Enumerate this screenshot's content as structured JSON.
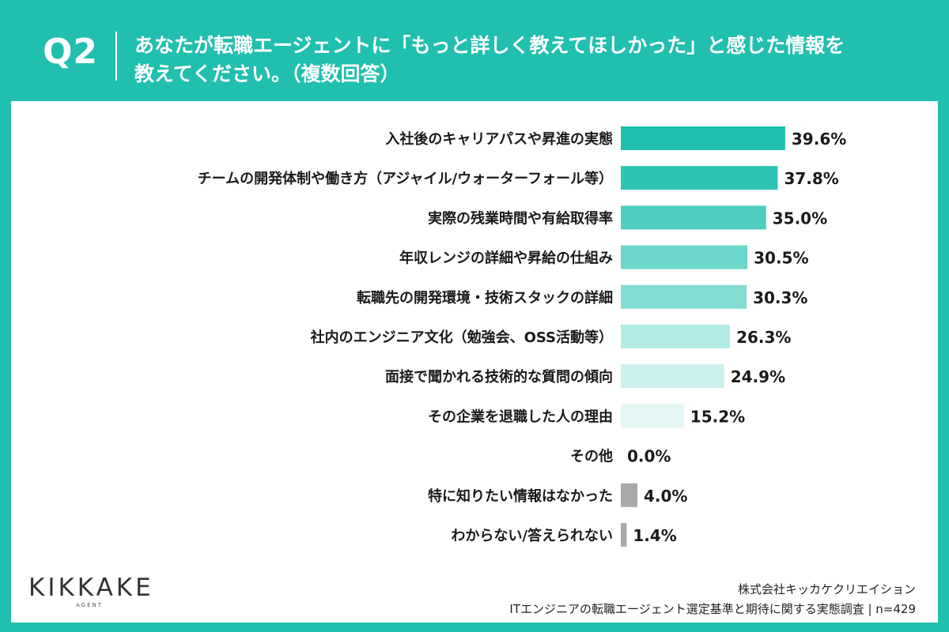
{
  "header": {
    "question_number": "Q2",
    "title_line1": "あなたが転職エージェントに「もっと詳しく教えてほしかった」と感じた情報を",
    "title_line2": "教えてください。（複数回答）"
  },
  "logo": {
    "name": "KIKKAKE",
    "sub": "AGENT"
  },
  "source": {
    "company": "株式会社キッカケクリエイション",
    "survey": "ITエンジニアの転職エージェント選定基準と期待に関する実態調査 | n=429"
  },
  "colors": {
    "background": "#21bfae",
    "bars": [
      "#21bfae",
      "#2ec3b3",
      "#4fcdbf",
      "#6ad7ca",
      "#84ddd3",
      "#b2ebe4",
      "#cbf1ec",
      "#e3f7f4",
      "#e3f7f4",
      "#a9a9a9",
      "#a9a9a9"
    ]
  },
  "chart_data": {
    "type": "bar",
    "orientation": "horizontal",
    "unit": "%",
    "categories": [
      "入社後のキャリアパスや昇進の実態",
      "チームの開発体制や働き方（アジャイル/ウォーターフォール等）",
      "実際の残業時間や有給取得率",
      "年収レンジの詳細や昇給の仕組み",
      "転職先の開発環境・技術スタックの詳細",
      "社内のエンジニア文化（勉強会、OSS活動等）",
      "面接で聞かれる技術的な質問の傾向",
      "その企業を退職した人の理由",
      "その他",
      "特に知りたい情報はなかった",
      "わからない/答えられない"
    ],
    "values": [
      39.6,
      37.8,
      35.0,
      30.5,
      30.3,
      26.3,
      24.9,
      15.2,
      0.0,
      4.0,
      1.4
    ],
    "value_labels": [
      "39.6%",
      "37.8%",
      "35.0%",
      "30.5%",
      "30.3%",
      "26.3%",
      "24.9%",
      "15.2%",
      "0.0%",
      "4.0%",
      "1.4%"
    ]
  }
}
